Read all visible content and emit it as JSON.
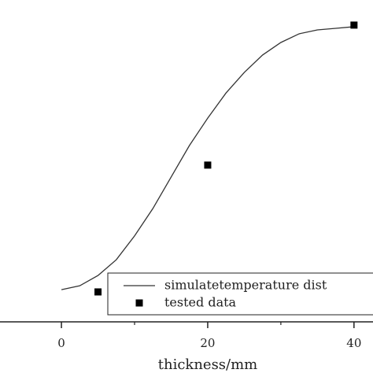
{
  "chart_data": {
    "type": "line",
    "x_label": "thickness/mm",
    "xlim": [
      -8.4,
      42.6
    ],
    "xticks": [
      0,
      20,
      40
    ],
    "xminorticks": [
      10,
      30
    ],
    "ylim": [
      0,
      100
    ],
    "series": [
      {
        "name": "simulatetemperature dist",
        "type": "line",
        "color": "#333333",
        "x": [
          0,
          2.5,
          5,
          7.5,
          10,
          12.5,
          15,
          17.5,
          20,
          22.5,
          25,
          27.5,
          30,
          32.5,
          35,
          37.5,
          40
        ],
        "values": [
          10.0,
          11.2,
          14.4,
          19.3,
          26.7,
          35.2,
          45.0,
          54.8,
          63.3,
          71.1,
          77.5,
          82.9,
          86.8,
          89.5,
          90.7,
          91.2,
          91.7
        ]
      },
      {
        "name": "tested data",
        "type": "scatter",
        "color": "#000000",
        "x": [
          5,
          20,
          40
        ],
        "values": [
          9.3,
          48.7,
          92.2
        ]
      }
    ],
    "legend": "lower right"
  }
}
